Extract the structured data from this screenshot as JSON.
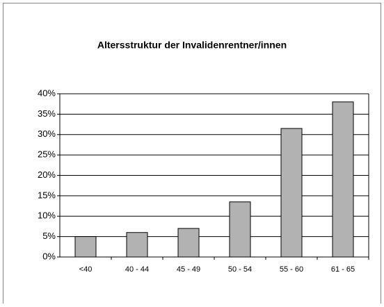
{
  "chart_data": {
    "type": "bar",
    "title": "Altersstruktur der Invalidenrentner/innen",
    "categories": [
      "<40",
      "40 - 44",
      "45 - 49",
      "50 - 54",
      "55 - 60",
      "61 - 65"
    ],
    "values": [
      5,
      6,
      7,
      13.5,
      31.5,
      38
    ],
    "color": "#b2b2b2",
    "ylim": [
      0,
      40
    ],
    "yticks": [
      {
        "value": 0,
        "label": "0%"
      },
      {
        "value": 5,
        "label": "5%"
      },
      {
        "value": 10,
        "label": "10%"
      },
      {
        "value": 15,
        "label": "15%"
      },
      {
        "value": 20,
        "label": "20%"
      },
      {
        "value": 25,
        "label": "25%"
      },
      {
        "value": 30,
        "label": "30%"
      },
      {
        "value": 35,
        "label": "35%"
      },
      {
        "value": 40,
        "label": "40%"
      }
    ],
    "grid": true
  }
}
